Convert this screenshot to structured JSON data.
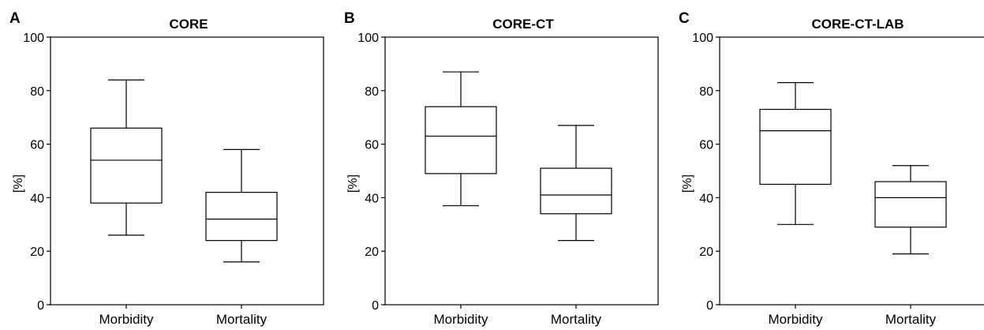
{
  "chart_data": [
    {
      "panel": "A",
      "type": "box",
      "title": "CORE",
      "ylabel": "[%]",
      "ylim": [
        0,
        100
      ],
      "yticks": [
        0,
        20,
        40,
        60,
        80,
        100
      ],
      "categories": [
        "Morbidity",
        "Mortality"
      ],
      "boxes": [
        {
          "min": 26,
          "q1": 38,
          "median": 54,
          "q3": 66,
          "max": 84
        },
        {
          "min": 16,
          "q1": 24,
          "median": 32,
          "q3": 42,
          "max": 58
        }
      ]
    },
    {
      "panel": "B",
      "type": "box",
      "title": "CORE-CT",
      "ylabel": "[%]",
      "ylim": [
        0,
        100
      ],
      "yticks": [
        0,
        20,
        40,
        60,
        80,
        100
      ],
      "categories": [
        "Morbidity",
        "Mortality"
      ],
      "boxes": [
        {
          "min": 37,
          "q1": 49,
          "median": 63,
          "q3": 74,
          "max": 87
        },
        {
          "min": 24,
          "q1": 34,
          "median": 41,
          "q3": 51,
          "max": 67
        }
      ]
    },
    {
      "panel": "C",
      "type": "box",
      "title": "CORE-CT-LAB",
      "ylabel": "[%]",
      "ylim": [
        0,
        100
      ],
      "yticks": [
        0,
        20,
        40,
        60,
        80,
        100
      ],
      "categories": [
        "Morbidity",
        "Mortality"
      ],
      "boxes": [
        {
          "min": 30,
          "q1": 45,
          "median": 65,
          "q3": 73,
          "max": 83
        },
        {
          "min": 19,
          "q1": 29,
          "median": 40,
          "q3": 46,
          "max": 52
        }
      ]
    }
  ]
}
